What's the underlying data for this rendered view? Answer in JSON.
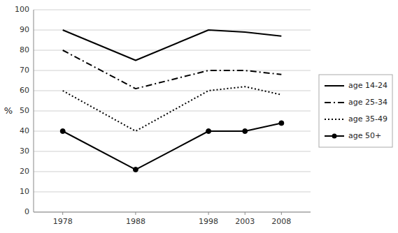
{
  "chart_data": {
    "type": "line",
    "y_label": "%",
    "x": [
      1978,
      1988,
      1998,
      2003,
      2008
    ],
    "xlim": [
      1974,
      2012
    ],
    "xticks": [
      1978,
      1988,
      1998,
      2003,
      2008
    ],
    "ylim": [
      0,
      100
    ],
    "yticks": [
      0,
      10,
      20,
      30,
      40,
      50,
      60,
      70,
      80,
      90,
      100
    ],
    "grid": true,
    "legend": "right",
    "series": [
      {
        "name": "age 14-24",
        "color": "#000000",
        "line_style": "solid",
        "values": [
          90,
          75,
          90,
          89,
          87
        ]
      },
      {
        "name": "age 25-34",
        "color": "#000000",
        "line_style": "dashdot",
        "values": [
          80,
          61,
          70,
          70,
          68
        ]
      },
      {
        "name": "age 35-49",
        "color": "#000000",
        "line_style": "dotted",
        "values": [
          60,
          40,
          60,
          62,
          58
        ]
      },
      {
        "name": "age 50+",
        "color": "#000000",
        "line_style": "solid",
        "marker": "circle",
        "values": [
          40,
          21,
          40,
          40,
          44
        ]
      }
    ]
  }
}
